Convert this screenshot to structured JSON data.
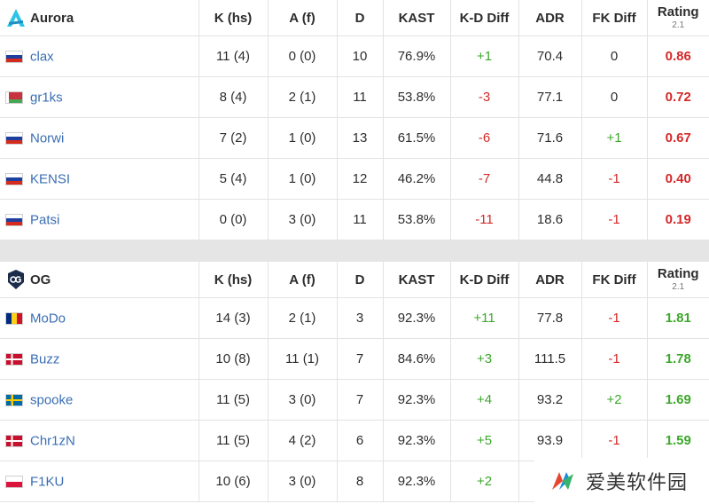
{
  "columns": [
    "K (hs)",
    "A (f)",
    "D",
    "KAST",
    "K-D Diff",
    "ADR",
    "FK Diff",
    "Rating"
  ],
  "rating_sub": "2.1",
  "teams": [
    {
      "name": "Aurora",
      "players": [
        {
          "flag": "ru",
          "name": "clax",
          "k": "11 (4)",
          "a": "0 (0)",
          "d": "10",
          "kast": "76.9%",
          "kd": "+1",
          "adr": "70.4",
          "fk": "0",
          "rating": "0.86"
        },
        {
          "flag": "by",
          "name": "gr1ks",
          "k": "8 (4)",
          "a": "2 (1)",
          "d": "11",
          "kast": "53.8%",
          "kd": "-3",
          "adr": "77.1",
          "fk": "0",
          "rating": "0.72"
        },
        {
          "flag": "ru",
          "name": "Norwi",
          "k": "7 (2)",
          "a": "1 (0)",
          "d": "13",
          "kast": "61.5%",
          "kd": "-6",
          "adr": "71.6",
          "fk": "+1",
          "rating": "0.67"
        },
        {
          "flag": "ru",
          "name": "KENSI",
          "k": "5 (4)",
          "a": "1 (0)",
          "d": "12",
          "kast": "46.2%",
          "kd": "-7",
          "adr": "44.8",
          "fk": "-1",
          "rating": "0.40"
        },
        {
          "flag": "ru",
          "name": "Patsi",
          "k": "0 (0)",
          "a": "3 (0)",
          "d": "11",
          "kast": "53.8%",
          "kd": "-11",
          "adr": "18.6",
          "fk": "-1",
          "rating": "0.19"
        }
      ]
    },
    {
      "name": "OG",
      "players": [
        {
          "flag": "ro",
          "name": "MoDo",
          "k": "14 (3)",
          "a": "2 (1)",
          "d": "3",
          "kast": "92.3%",
          "kd": "+11",
          "adr": "77.8",
          "fk": "-1",
          "rating": "1.81"
        },
        {
          "flag": "dk",
          "name": "Buzz",
          "k": "10 (8)",
          "a": "11 (1)",
          "d": "7",
          "kast": "84.6%",
          "kd": "+3",
          "adr": "111.5",
          "fk": "-1",
          "rating": "1.78"
        },
        {
          "flag": "se",
          "name": "spooke",
          "k": "11 (5)",
          "a": "3 (0)",
          "d": "7",
          "kast": "92.3%",
          "kd": "+4",
          "adr": "93.2",
          "fk": "+2",
          "rating": "1.69"
        },
        {
          "flag": "dk",
          "name": "Chr1zN",
          "k": "11 (5)",
          "a": "4 (2)",
          "d": "6",
          "kast": "92.3%",
          "kd": "+5",
          "adr": "93.9",
          "fk": "-1",
          "rating": "1.59"
        },
        {
          "flag": "pl",
          "name": "F1KU",
          "k": "10 (6)",
          "a": "3 (0)",
          "d": "8",
          "kast": "92.3%",
          "kd": "+2",
          "adr": "",
          "fk": "",
          "rating": ""
        }
      ]
    }
  ],
  "watermark": {
    "text": "爱美软件园"
  },
  "colors": {
    "positive": "#3da72b",
    "negative": "#d42929",
    "player_link": "#3a6eb3",
    "divider": "#e5e5e5"
  }
}
